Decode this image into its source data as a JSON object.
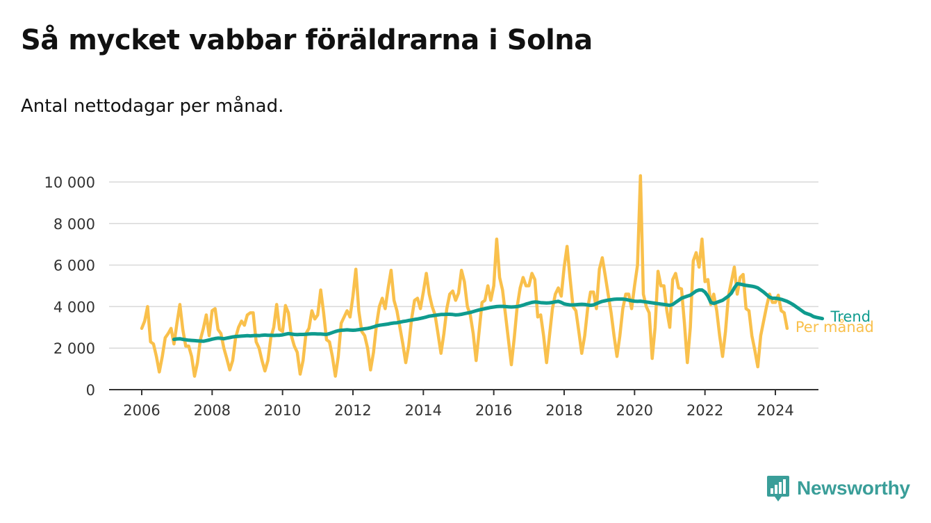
{
  "title": "Så mycket vabbar föräldrarna i Solna",
  "subtitle": "Antal nettodagar per månad.",
  "brand": {
    "name": "Newsworthy",
    "color": "#3a9e99",
    "icon": "newsworthy-logo-icon"
  },
  "chart_data": {
    "type": "line",
    "x_axis": {
      "min": 2006,
      "max": 2025,
      "tick_labels": [
        "2006",
        "2008",
        "2010",
        "2012",
        "2014",
        "2016",
        "2018",
        "2020",
        "2022",
        "2024"
      ],
      "ticks": [
        2006,
        2008,
        2010,
        2012,
        2014,
        2016,
        2018,
        2020,
        2022,
        2024
      ]
    },
    "y_axis": {
      "min": 0,
      "max": 10000,
      "tick_labels": [
        "0",
        "2 000",
        "4 000",
        "6 000",
        "8 000",
        "10 000"
      ],
      "ticks": [
        0,
        2000,
        4000,
        6000,
        8000,
        10000
      ]
    },
    "grid": "horizontal",
    "legend": "inline-right",
    "series": [
      {
        "name": "Per månad",
        "color": "#f9c04c",
        "x_start": "2006-01",
        "values": [
          2950,
          3300,
          4000,
          2300,
          2200,
          1600,
          850,
          1600,
          2500,
          2700,
          2950,
          2200,
          3200,
          4100,
          2900,
          2100,
          2100,
          1600,
          650,
          1300,
          2400,
          2950,
          3600,
          2600,
          3800,
          3900,
          2900,
          2700,
          2000,
          1500,
          950,
          1400,
          2500,
          3000,
          3300,
          3100,
          3600,
          3700,
          3700,
          2300,
          2000,
          1400,
          900,
          1400,
          2500,
          3000,
          4100,
          2900,
          2800,
          4050,
          3700,
          2600,
          2100,
          1800,
          750,
          1400,
          2700,
          2950,
          3800,
          3400,
          3600,
          4800,
          3700,
          2400,
          2300,
          1600,
          650,
          1600,
          3200,
          3500,
          3800,
          3500,
          4500,
          5800,
          3800,
          2800,
          2600,
          2000,
          950,
          1800,
          3100,
          4000,
          4400,
          3900,
          4900,
          5750,
          4300,
          3800,
          3000,
          2200,
          1300,
          2100,
          3400,
          4300,
          4400,
          3900,
          4700,
          5600,
          4600,
          4000,
          3600,
          2700,
          1750,
          2700,
          3900,
          4600,
          4750,
          4300,
          4650,
          5750,
          5200,
          4000,
          3600,
          2700,
          1400,
          2800,
          4200,
          4300,
          5000,
          4300,
          5000,
          7250,
          5400,
          4800,
          3600,
          2400,
          1200,
          2500,
          4000,
          4900,
          5400,
          5000,
          5000,
          5600,
          5300,
          3500,
          3600,
          2600,
          1300,
          2600,
          3900,
          4600,
          4900,
          4500,
          5900,
          6900,
          5400,
          4000,
          3800,
          2800,
          1750,
          2600,
          3900,
          4700,
          4700,
          3900,
          5800,
          6350,
          5500,
          4600,
          3700,
          2600,
          1600,
          2600,
          3900,
          4600,
          4600,
          3900,
          5000,
          6000,
          10300,
          4600,
          4000,
          3700,
          1500,
          3000,
          5700,
          5000,
          5000,
          3800,
          3000,
          5300,
          5600,
          4900,
          4850,
          3200,
          1300,
          3000,
          6200,
          6600,
          5900,
          7250,
          5200,
          5300,
          4100,
          4600,
          3800,
          2600,
          1600,
          2800,
          4500,
          5200,
          5900,
          4600,
          5400,
          5550,
          3900,
          3800,
          2600,
          1900,
          1100,
          2600,
          3300,
          4000,
          4600,
          4200,
          4200,
          4550,
          3800,
          3700,
          2950
        ]
      },
      {
        "name": "Trend",
        "color": "#0f9b8e",
        "x_start": "2006-12",
        "values": [
          2420,
          2440,
          2450,
          2420,
          2400,
          2380,
          2370,
          2360,
          2350,
          2340,
          2330,
          2360,
          2390,
          2430,
          2460,
          2480,
          2470,
          2450,
          2480,
          2510,
          2540,
          2560,
          2570,
          2580,
          2590,
          2600,
          2590,
          2600,
          2610,
          2600,
          2620,
          2630,
          2620,
          2620,
          2610,
          2620,
          2620,
          2640,
          2670,
          2700,
          2680,
          2660,
          2650,
          2660,
          2660,
          2670,
          2680,
          2690,
          2690,
          2680,
          2680,
          2670,
          2660,
          2700,
          2750,
          2800,
          2840,
          2860,
          2870,
          2880,
          2870,
          2860,
          2870,
          2890,
          2910,
          2930,
          2950,
          2980,
          3020,
          3070,
          3100,
          3120,
          3140,
          3160,
          3190,
          3210,
          3220,
          3250,
          3280,
          3300,
          3330,
          3350,
          3380,
          3400,
          3430,
          3460,
          3500,
          3540,
          3560,
          3580,
          3600,
          3620,
          3620,
          3630,
          3630,
          3620,
          3600,
          3610,
          3630,
          3660,
          3690,
          3720,
          3760,
          3800,
          3840,
          3870,
          3900,
          3930,
          3960,
          3980,
          4000,
          4010,
          4010,
          4000,
          3990,
          3980,
          3990,
          4000,
          4030,
          4070,
          4120,
          4160,
          4200,
          4220,
          4210,
          4190,
          4180,
          4170,
          4180,
          4200,
          4230,
          4250,
          4200,
          4130,
          4100,
          4080,
          4080,
          4090,
          4100,
          4110,
          4100,
          4080,
          4060,
          4080,
          4140,
          4200,
          4250,
          4280,
          4310,
          4330,
          4350,
          4360,
          4360,
          4360,
          4340,
          4310,
          4280,
          4260,
          4250,
          4260,
          4240,
          4220,
          4200,
          4180,
          4160,
          4140,
          4120,
          4100,
          4080,
          4060,
          4100,
          4200,
          4300,
          4400,
          4450,
          4500,
          4550,
          4650,
          4750,
          4800,
          4800,
          4700,
          4500,
          4200,
          4150,
          4200,
          4250,
          4300,
          4400,
          4500,
          4650,
          4900,
          5100,
          5080,
          5050,
          5020,
          5000,
          4980,
          4950,
          4900,
          4800,
          4700,
          4580,
          4450,
          4400,
          4400,
          4380,
          4350,
          4300,
          4250,
          4180,
          4100,
          4000,
          3900,
          3800,
          3700,
          3650,
          3600,
          3520,
          3480,
          3450,
          3420
        ]
      }
    ]
  }
}
